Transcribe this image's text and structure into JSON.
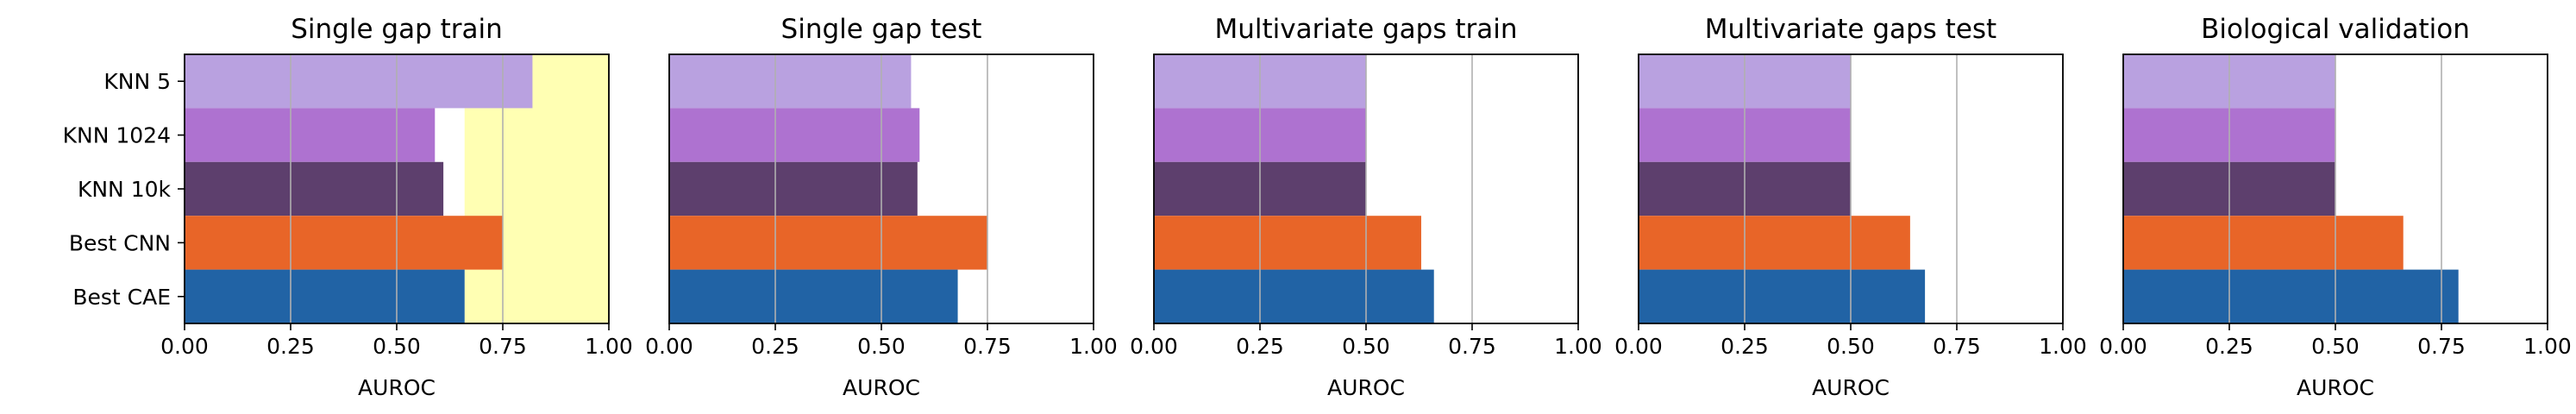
{
  "chart_data": [
    {
      "type": "bar",
      "orientation": "horizontal",
      "title": "Single gap train",
      "xlabel": "AUROC",
      "ylabel": "",
      "xlim": [
        0,
        1.0
      ],
      "xticks": [
        "0.00",
        "0.25",
        "0.50",
        "0.75",
        "1.00"
      ],
      "categories": [
        "KNN 5",
        "KNN 1024",
        "KNN 10k",
        "Best CNN",
        "Best CAE"
      ],
      "values": [
        0.82,
        0.59,
        0.61,
        0.75,
        0.66
      ],
      "highlight_band": [
        0.66,
        1.0
      ],
      "grid": "vertical"
    },
    {
      "type": "bar",
      "orientation": "horizontal",
      "title": "Single gap test",
      "xlabel": "AUROC",
      "ylabel": "",
      "xlim": [
        0,
        1.0
      ],
      "xticks": [
        "0.00",
        "0.25",
        "0.50",
        "0.75",
        "1.00"
      ],
      "categories": [
        "KNN 5",
        "KNN 1024",
        "KNN 10k",
        "Best CNN",
        "Best CAE"
      ],
      "values": [
        0.57,
        0.59,
        0.585,
        0.75,
        0.68
      ],
      "grid": "vertical"
    },
    {
      "type": "bar",
      "orientation": "horizontal",
      "title": "Multivariate gaps train",
      "xlabel": "AUROC",
      "ylabel": "",
      "xlim": [
        0,
        1.0
      ],
      "xticks": [
        "0.00",
        "0.25",
        "0.50",
        "0.75",
        "1.00"
      ],
      "categories": [
        "KNN 5",
        "KNN 1024",
        "KNN 10k",
        "Best CNN",
        "Best CAE"
      ],
      "values": [
        0.5,
        0.5,
        0.5,
        0.63,
        0.66
      ],
      "grid": "vertical"
    },
    {
      "type": "bar",
      "orientation": "horizontal",
      "title": "Multivariate gaps test",
      "xlabel": "AUROC",
      "ylabel": "",
      "xlim": [
        0,
        1.0
      ],
      "xticks": [
        "0.00",
        "0.25",
        "0.50",
        "0.75",
        "1.00"
      ],
      "categories": [
        "KNN 5",
        "KNN 1024",
        "KNN 10k",
        "Best CNN",
        "Best CAE"
      ],
      "values": [
        0.5,
        0.5,
        0.5,
        0.64,
        0.675
      ],
      "grid": "vertical"
    },
    {
      "type": "bar",
      "orientation": "horizontal",
      "title": "Biological validation",
      "xlabel": "AUROC",
      "ylabel": "",
      "xlim": [
        0,
        1.0
      ],
      "xticks": [
        "0.00",
        "0.25",
        "0.50",
        "0.75",
        "1.00"
      ],
      "categories": [
        "KNN 5",
        "KNN 1024",
        "KNN 10k",
        "Best CNN",
        "Best CAE"
      ],
      "values": [
        0.5,
        0.5,
        0.5,
        0.66,
        0.79
      ],
      "grid": "vertical"
    }
  ],
  "colors": {
    "KNN 5": "#b9a1e0",
    "KNN 1024": "#ae72d0",
    "KNN 10k": "#5d3f6d",
    "Best CNN": "#e86528",
    "Best CAE": "#2163a5",
    "highlight_band": "#ffffb3",
    "grid": "#b0b0b0"
  }
}
